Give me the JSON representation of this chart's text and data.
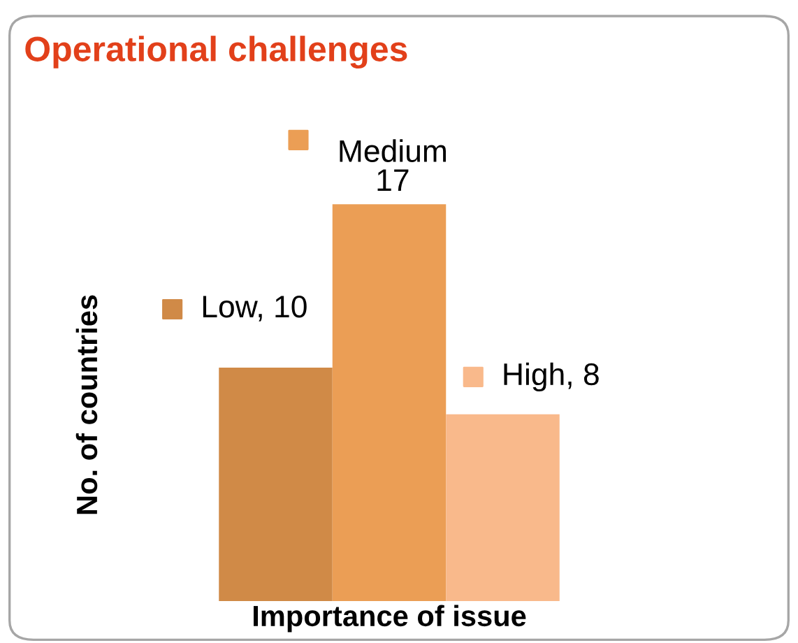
{
  "chart_data": {
    "type": "bar",
    "title": "Operational challenges",
    "xlabel": "Importance of issue",
    "ylabel": "No. of countries",
    "categories": [
      null,
      null,
      null
    ],
    "values": [
      10,
      17,
      8
    ],
    "colors": [
      "#d08a47",
      "#eb9e55",
      "#f9b98b"
    ],
    "value_labels": [
      "Low, 10",
      "Medium\n17",
      "High, 8"
    ],
    "ylim": [
      0,
      20
    ],
    "tick_labels": false,
    "grid": false,
    "legend": false
  }
}
